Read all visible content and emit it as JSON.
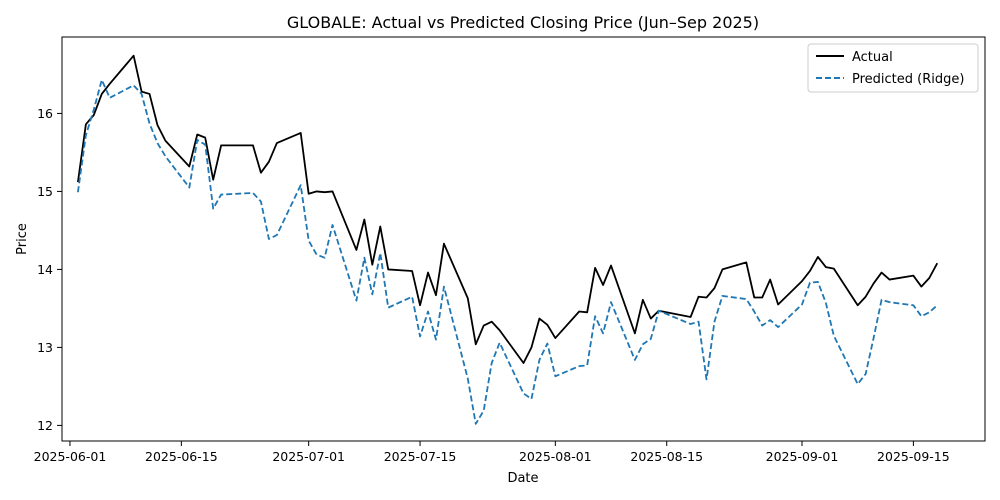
{
  "chart_data": {
    "type": "line",
    "title": "GLOBALE: Actual vs Predicted Closing Price (Jun–Sep 2025)",
    "xlabel": "Date",
    "ylabel": "Price",
    "xlim": [
      "2025-05-31",
      "2025-09-24"
    ],
    "ylim": [
      11.8,
      16.98
    ],
    "x_ticks": [
      "2025-06-01",
      "2025-06-15",
      "2025-07-01",
      "2025-07-15",
      "2025-08-01",
      "2025-08-15",
      "2025-09-01",
      "2025-09-15"
    ],
    "y_ticks": [
      12,
      13,
      14,
      15,
      16
    ],
    "grid": false,
    "legend_position": "top-right",
    "colors": {
      "actual": "#000000",
      "predicted": "#1f77b4"
    },
    "series": [
      {
        "name": "Actual",
        "style": "solid",
        "points": [
          [
            "2025-06-02",
            15.12
          ],
          [
            "2025-06-03",
            15.86
          ],
          [
            "2025-06-04",
            15.98
          ],
          [
            "2025-06-05",
            16.25
          ],
          [
            "2025-06-06",
            16.38
          ],
          [
            "2025-06-09",
            16.74
          ],
          [
            "2025-06-10",
            16.28
          ],
          [
            "2025-06-11",
            16.25
          ],
          [
            "2025-06-12",
            15.85
          ],
          [
            "2025-06-13",
            15.65
          ],
          [
            "2025-06-16",
            15.32
          ],
          [
            "2025-06-17",
            15.73
          ],
          [
            "2025-06-18",
            15.69
          ],
          [
            "2025-06-19",
            15.15
          ],
          [
            "2025-06-20",
            15.59
          ],
          [
            "2025-06-24",
            15.59
          ],
          [
            "2025-06-25",
            15.24
          ],
          [
            "2025-06-26",
            15.38
          ],
          [
            "2025-06-27",
            15.62
          ],
          [
            "2025-06-30",
            15.75
          ],
          [
            "2025-07-01",
            14.97
          ],
          [
            "2025-07-02",
            15.0
          ],
          [
            "2025-07-03",
            14.99
          ],
          [
            "2025-07-04",
            15.0
          ],
          [
            "2025-07-07",
            14.25
          ],
          [
            "2025-07-08",
            14.64
          ],
          [
            "2025-07-09",
            14.06
          ],
          [
            "2025-07-10",
            14.55
          ],
          [
            "2025-07-11",
            14.0
          ],
          [
            "2025-07-14",
            13.98
          ],
          [
            "2025-07-15",
            13.54
          ],
          [
            "2025-07-16",
            13.96
          ],
          [
            "2025-07-17",
            13.67
          ],
          [
            "2025-07-18",
            14.33
          ],
          [
            "2025-07-21",
            13.63
          ],
          [
            "2025-07-22",
            13.04
          ],
          [
            "2025-07-23",
            13.28
          ],
          [
            "2025-07-24",
            13.33
          ],
          [
            "2025-07-25",
            13.22
          ],
          [
            "2025-07-28",
            12.8
          ],
          [
            "2025-07-29",
            13.0
          ],
          [
            "2025-07-30",
            13.37
          ],
          [
            "2025-07-31",
            13.29
          ],
          [
            "2025-08-01",
            13.12
          ],
          [
            "2025-08-04",
            13.46
          ],
          [
            "2025-08-05",
            13.45
          ],
          [
            "2025-08-06",
            14.02
          ],
          [
            "2025-08-07",
            13.8
          ],
          [
            "2025-08-08",
            14.05
          ],
          [
            "2025-08-11",
            13.18
          ],
          [
            "2025-08-12",
            13.61
          ],
          [
            "2025-08-13",
            13.37
          ],
          [
            "2025-08-14",
            13.47
          ],
          [
            "2025-08-18",
            13.39
          ],
          [
            "2025-08-19",
            13.65
          ],
          [
            "2025-08-20",
            13.64
          ],
          [
            "2025-08-21",
            13.76
          ],
          [
            "2025-08-22",
            14.0
          ],
          [
            "2025-08-25",
            14.09
          ],
          [
            "2025-08-26",
            13.64
          ],
          [
            "2025-08-27",
            13.64
          ],
          [
            "2025-08-28",
            13.87
          ],
          [
            "2025-08-29",
            13.55
          ],
          [
            "2025-09-01",
            13.85
          ],
          [
            "2025-09-02",
            13.98
          ],
          [
            "2025-09-03",
            14.16
          ],
          [
            "2025-09-04",
            14.03
          ],
          [
            "2025-09-05",
            14.01
          ],
          [
            "2025-09-08",
            13.54
          ],
          [
            "2025-09-09",
            13.65
          ],
          [
            "2025-09-10",
            13.82
          ],
          [
            "2025-09-11",
            13.96
          ],
          [
            "2025-09-12",
            13.87
          ],
          [
            "2025-09-15",
            13.92
          ],
          [
            "2025-09-16",
            13.78
          ],
          [
            "2025-09-17",
            13.89
          ],
          [
            "2025-09-18",
            14.08
          ]
        ]
      },
      {
        "name": "Predicted (Ridge)",
        "style": "dashed",
        "points": [
          [
            "2025-06-02",
            14.99
          ],
          [
            "2025-06-03",
            15.72
          ],
          [
            "2025-06-04",
            16.05
          ],
          [
            "2025-06-05",
            16.43
          ],
          [
            "2025-06-06",
            16.2
          ],
          [
            "2025-06-09",
            16.36
          ],
          [
            "2025-06-10",
            16.25
          ],
          [
            "2025-06-11",
            15.87
          ],
          [
            "2025-06-12",
            15.62
          ],
          [
            "2025-06-13",
            15.45
          ],
          [
            "2025-06-16",
            15.05
          ],
          [
            "2025-06-17",
            15.66
          ],
          [
            "2025-06-18",
            15.6
          ],
          [
            "2025-06-19",
            14.78
          ],
          [
            "2025-06-20",
            14.96
          ],
          [
            "2025-06-24",
            14.98
          ],
          [
            "2025-06-25",
            14.87
          ],
          [
            "2025-06-26",
            14.39
          ],
          [
            "2025-06-27",
            14.44
          ],
          [
            "2025-06-30",
            15.08
          ],
          [
            "2025-07-01",
            14.37
          ],
          [
            "2025-07-02",
            14.19
          ],
          [
            "2025-07-03",
            14.15
          ],
          [
            "2025-07-04",
            14.57
          ],
          [
            "2025-07-07",
            13.6
          ],
          [
            "2025-07-08",
            14.15
          ],
          [
            "2025-07-09",
            13.68
          ],
          [
            "2025-07-10",
            14.21
          ],
          [
            "2025-07-11",
            13.51
          ],
          [
            "2025-07-14",
            13.65
          ],
          [
            "2025-07-15",
            13.14
          ],
          [
            "2025-07-16",
            13.46
          ],
          [
            "2025-07-17",
            13.1
          ],
          [
            "2025-07-18",
            13.78
          ],
          [
            "2025-07-21",
            12.6
          ],
          [
            "2025-07-22",
            12.02
          ],
          [
            "2025-07-23",
            12.19
          ],
          [
            "2025-07-24",
            12.8
          ],
          [
            "2025-07-25",
            13.06
          ],
          [
            "2025-07-28",
            12.41
          ],
          [
            "2025-07-29",
            12.34
          ],
          [
            "2025-07-30",
            12.84
          ],
          [
            "2025-07-31",
            13.05
          ],
          [
            "2025-08-01",
            12.63
          ],
          [
            "2025-08-04",
            12.76
          ],
          [
            "2025-08-05",
            12.77
          ],
          [
            "2025-08-06",
            13.4
          ],
          [
            "2025-08-07",
            13.18
          ],
          [
            "2025-08-08",
            13.58
          ],
          [
            "2025-08-11",
            12.84
          ],
          [
            "2025-08-12",
            13.04
          ],
          [
            "2025-08-13",
            13.11
          ],
          [
            "2025-08-14",
            13.47
          ],
          [
            "2025-08-18",
            13.3
          ],
          [
            "2025-08-19",
            13.33
          ],
          [
            "2025-08-20",
            12.59
          ],
          [
            "2025-08-21",
            13.33
          ],
          [
            "2025-08-22",
            13.66
          ],
          [
            "2025-08-25",
            13.62
          ],
          [
            "2025-08-26",
            13.46
          ],
          [
            "2025-08-27",
            13.28
          ],
          [
            "2025-08-28",
            13.35
          ],
          [
            "2025-08-29",
            13.26
          ],
          [
            "2025-09-01",
            13.55
          ],
          [
            "2025-09-02",
            13.83
          ],
          [
            "2025-09-03",
            13.84
          ],
          [
            "2025-09-04",
            13.57
          ],
          [
            "2025-09-05",
            13.15
          ],
          [
            "2025-09-08",
            12.53
          ],
          [
            "2025-09-09",
            12.66
          ],
          [
            "2025-09-10",
            13.12
          ],
          [
            "2025-09-11",
            13.61
          ],
          [
            "2025-09-12",
            13.58
          ],
          [
            "2025-09-15",
            13.54
          ],
          [
            "2025-09-16",
            13.4
          ],
          [
            "2025-09-17",
            13.45
          ],
          [
            "2025-09-18",
            13.54
          ]
        ]
      }
    ]
  }
}
